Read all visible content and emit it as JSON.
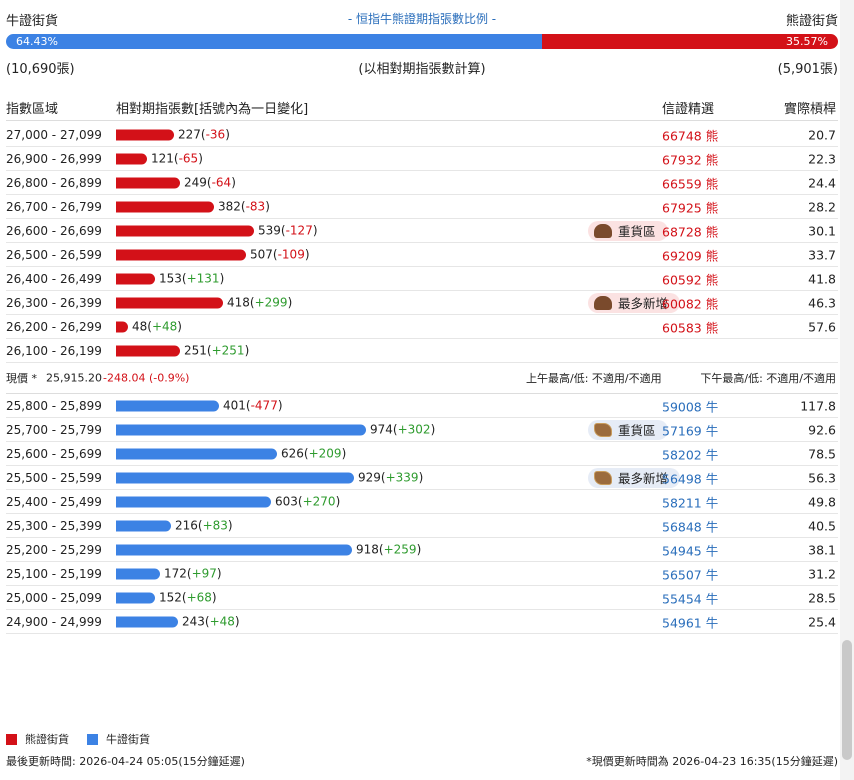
{
  "header": {
    "left_label": "牛證街貨",
    "center_label": "- 恒指牛熊證期指張數比例 -",
    "right_label": "熊證街貨"
  },
  "ratio": {
    "bull_pct": "64.43%",
    "bear_pct": "35.57%",
    "bull_fraction": 0.6443,
    "bull_color": "#3c82e4",
    "bear_color": "#d31118"
  },
  "counts": {
    "bull_total": "(10,690張)",
    "note": "(以相對期指張數計算)",
    "bear_total": "(5,901張)"
  },
  "columns": {
    "range": "指數區域",
    "contracts": "相對期指張數[括號內為一日變化]",
    "code": "信證精選",
    "leverage": "實際槓桿"
  },
  "bear_rows": [
    {
      "range": "27,000 - 27,099",
      "count": "227",
      "change": "-36",
      "code": "66748",
      "unit": "熊",
      "leverage": "20.7",
      "value": 227,
      "tag": ""
    },
    {
      "range": "26,900 - 26,999",
      "count": "121",
      "change": "-65",
      "code": "67932",
      "unit": "熊",
      "leverage": "22.3",
      "value": 121,
      "tag": ""
    },
    {
      "range": "26,800 - 26,899",
      "count": "249",
      "change": "-64",
      "code": "66559",
      "unit": "熊",
      "leverage": "24.4",
      "value": 249,
      "tag": ""
    },
    {
      "range": "26,700 - 26,799",
      "count": "382",
      "change": "-83",
      "code": "67925",
      "unit": "熊",
      "leverage": "28.2",
      "value": 382,
      "tag": ""
    },
    {
      "range": "26,600 - 26,699",
      "count": "539",
      "change": "-127",
      "code": "68728",
      "unit": "熊",
      "leverage": "30.1",
      "value": 539,
      "tag": "重貨區"
    },
    {
      "range": "26,500 - 26,599",
      "count": "507",
      "change": "-109",
      "code": "69209",
      "unit": "熊",
      "leverage": "33.7",
      "value": 507,
      "tag": ""
    },
    {
      "range": "26,400 - 26,499",
      "count": "153",
      "change": "+131",
      "code": "60592",
      "unit": "熊",
      "leverage": "41.8",
      "value": 153,
      "tag": ""
    },
    {
      "range": "26,300 - 26,399",
      "count": "418",
      "change": "+299",
      "code": "60082",
      "unit": "熊",
      "leverage": "46.3",
      "value": 418,
      "tag": "最多新增"
    },
    {
      "range": "26,200 - 26,299",
      "count": "48",
      "change": "+48",
      "code": "60583",
      "unit": "熊",
      "leverage": "57.6",
      "value": 48,
      "tag": ""
    },
    {
      "range": "26,100 - 26,199",
      "count": "251",
      "change": "+251",
      "code": "",
      "unit": "",
      "leverage": "",
      "value": 251,
      "tag": ""
    }
  ],
  "current": {
    "label": "現價 *",
    "price": "25,915.20",
    "change": "-248.04 (-0.9%)",
    "am": "上午最高/低: 不適用/不適用",
    "pm": "下午最高/低: 不適用/不適用"
  },
  "bull_rows": [
    {
      "range": "25,800 - 25,899",
      "count": "401",
      "change": "-477",
      "code": "59008",
      "unit": "牛",
      "leverage": "117.8",
      "value": 401,
      "tag": ""
    },
    {
      "range": "25,700 - 25,799",
      "count": "974",
      "change": "+302",
      "code": "57169",
      "unit": "牛",
      "leverage": "92.6",
      "value": 974,
      "tag": "重貨區"
    },
    {
      "range": "25,600 - 25,699",
      "count": "626",
      "change": "+209",
      "code": "58202",
      "unit": "牛",
      "leverage": "78.5",
      "value": 626,
      "tag": ""
    },
    {
      "range": "25,500 - 25,599",
      "count": "929",
      "change": "+339",
      "code": "56498",
      "unit": "牛",
      "leverage": "56.3",
      "value": 929,
      "tag": "最多新增"
    },
    {
      "range": "25,400 - 25,499",
      "count": "603",
      "change": "+270",
      "code": "58211",
      "unit": "牛",
      "leverage": "49.8",
      "value": 603,
      "tag": ""
    },
    {
      "range": "25,300 - 25,399",
      "count": "216",
      "change": "+83",
      "code": "56848",
      "unit": "牛",
      "leverage": "40.5",
      "value": 216,
      "tag": ""
    },
    {
      "range": "25,200 - 25,299",
      "count": "918",
      "change": "+259",
      "code": "54945",
      "unit": "牛",
      "leverage": "38.1",
      "value": 918,
      "tag": ""
    },
    {
      "range": "25,100 - 25,199",
      "count": "172",
      "change": "+97",
      "code": "56507",
      "unit": "牛",
      "leverage": "31.2",
      "value": 172,
      "tag": ""
    },
    {
      "range": "25,000 - 25,099",
      "count": "152",
      "change": "+68",
      "code": "55454",
      "unit": "牛",
      "leverage": "28.5",
      "value": 152,
      "tag": ""
    },
    {
      "range": "24,900 - 24,999",
      "count": "243",
      "change": "+48",
      "code": "54961",
      "unit": "牛",
      "leverage": "25.4",
      "value": 243,
      "tag": ""
    }
  ],
  "legend": {
    "bear": "熊證街貨",
    "bull": "牛證街貨"
  },
  "footer": {
    "last_update": "最後更新時間: 2026-04-24 05:05(15分鐘延遲)",
    "price_update": "*現價更新時間為 2026-04-23 16:35(15分鐘延遲)"
  }
}
